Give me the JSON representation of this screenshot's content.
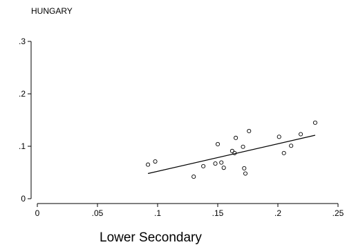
{
  "chart_data": {
    "type": "scatter",
    "title": "HUNGARY",
    "xlabel": "Lower Secondary",
    "ylabel": "",
    "xlim": [
      0,
      0.25
    ],
    "ylim": [
      0,
      0.3
    ],
    "x_ticks": [
      0,
      0.05,
      0.1,
      0.15,
      0.2,
      0.25
    ],
    "x_tick_labels": [
      "0",
      ".05",
      ".1",
      ".15",
      ".2",
      ".25"
    ],
    "y_ticks": [
      0,
      0.1,
      0.2,
      0.3
    ],
    "y_tick_labels": [
      "0",
      ".1",
      ".2",
      ".3"
    ],
    "grid": false,
    "legend": "none",
    "series": [
      {
        "type": "scatter",
        "marker": "hollow-circle",
        "color": "#000000",
        "points": [
          {
            "x": 0.092,
            "y": 0.065
          },
          {
            "x": 0.098,
            "y": 0.071
          },
          {
            "x": 0.13,
            "y": 0.042
          },
          {
            "x": 0.138,
            "y": 0.062
          },
          {
            "x": 0.148,
            "y": 0.067
          },
          {
            "x": 0.15,
            "y": 0.104
          },
          {
            "x": 0.153,
            "y": 0.069
          },
          {
            "x": 0.155,
            "y": 0.059
          },
          {
            "x": 0.162,
            "y": 0.091
          },
          {
            "x": 0.164,
            "y": 0.087
          },
          {
            "x": 0.165,
            "y": 0.116
          },
          {
            "x": 0.171,
            "y": 0.099
          },
          {
            "x": 0.172,
            "y": 0.058
          },
          {
            "x": 0.173,
            "y": 0.048
          },
          {
            "x": 0.176,
            "y": 0.129
          },
          {
            "x": 0.201,
            "y": 0.118
          },
          {
            "x": 0.205,
            "y": 0.087
          },
          {
            "x": 0.211,
            "y": 0.101
          },
          {
            "x": 0.219,
            "y": 0.123
          },
          {
            "x": 0.231,
            "y": 0.145
          }
        ]
      },
      {
        "type": "line",
        "color": "#000000",
        "points": [
          {
            "x": 0.092,
            "y": 0.048
          },
          {
            "x": 0.231,
            "y": 0.121
          }
        ]
      }
    ]
  }
}
